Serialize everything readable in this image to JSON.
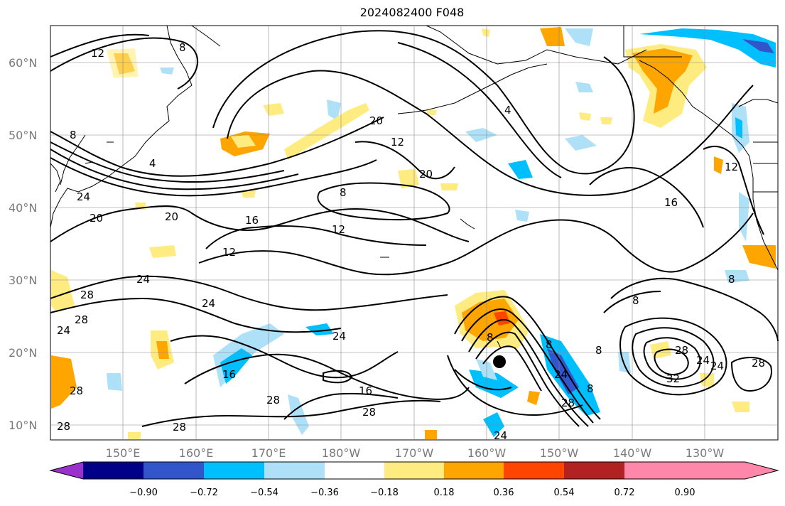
{
  "title": "2024082400 F048",
  "lat_labels": [
    "60°N",
    "50°N",
    "40°N",
    "30°N",
    "20°N",
    "10°N"
  ],
  "lon_labels": [
    "150°E",
    "160°E",
    "170°E",
    "180°W",
    "170°W",
    "160°W",
    "150°W",
    "140°W",
    "130°W"
  ],
  "colorbar": {
    "ticks": [
      "−0.90",
      "−0.72",
      "−0.54",
      "−0.36",
      "−0.18",
      "0.18",
      "0.36",
      "0.54",
      "0.72",
      "0.90"
    ],
    "colors": [
      "#9932cc",
      "#000088",
      "#3355cc",
      "#00bfff",
      "#aee0f8",
      "#ffffff",
      "#ffec80",
      "#ffa500",
      "#ff4500",
      "#b22222",
      "#ff88aa"
    ]
  },
  "contour_labels": [
    "12",
    "8",
    "4",
    "20",
    "16",
    "24",
    "28",
    "32"
  ],
  "marker": "storm-center"
}
